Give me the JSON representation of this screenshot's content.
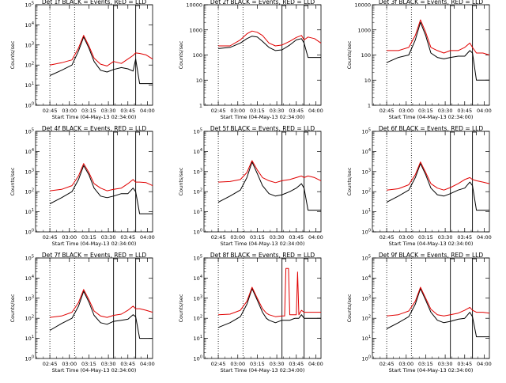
{
  "figure": {
    "xlabel": "Start Time (04-May-13 02:34:00)",
    "ylabel": "Counts/sec",
    "x_tick_labels": [
      "02:45",
      "03:00",
      "03:15",
      "03:30",
      "03:45",
      "04:00"
    ],
    "colors": {
      "events": "#000000",
      "lld": "#e00000"
    }
  },
  "chart_data": [
    {
      "type": "line",
      "title": "Det 1f BLACK = Events, RED = LLD",
      "ylabel": "Counts/sec",
      "xlabel": "Start Time (04-May-13 02:34:00)",
      "x_units": "minutes after 02:34:00",
      "xlim": [
        0,
        90
      ],
      "ylim": [
        1,
        100000
      ],
      "yscale": "log",
      "y_tick_labels": [
        "10^0",
        "10^1",
        "10^2",
        "10^3",
        "10^4",
        "10^5"
      ],
      "dotted_vlines": [
        11,
        30
      ],
      "solid_vlines": [
        60,
        77
      ],
      "x": [
        11,
        20,
        28,
        33,
        37,
        41,
        45,
        50,
        55,
        60,
        66,
        71,
        75,
        77,
        80,
        85,
        90
      ],
      "series": [
        {
          "name": "Events",
          "color": "#000000",
          "values": [
            30,
            55,
            100,
            500,
            2500,
            700,
            150,
            55,
            45,
            60,
            75,
            65,
            50,
            200,
            12,
            12,
            12
          ]
        },
        {
          "name": "LLD",
          "color": "#e00000",
          "values": [
            100,
            130,
            180,
            700,
            3000,
            900,
            220,
            110,
            90,
            150,
            120,
            200,
            300,
            400,
            380,
            320,
            200
          ]
        }
      ]
    },
    {
      "type": "line",
      "title": "Det 2f BLACK = Events, RED = LLD",
      "ylabel": "Counts/sec",
      "xlabel": "Start Time (04-May-13 02:34:00)",
      "x_units": "minutes after 02:34:00",
      "xlim": [
        0,
        90
      ],
      "ylim": [
        1,
        10000
      ],
      "yscale": "log",
      "y_tick_labels": [
        "1",
        "10",
        "100",
        "1000",
        "10000"
      ],
      "dotted_vlines": [
        11,
        30
      ],
      "solid_vlines": [
        60,
        77
      ],
      "x": [
        11,
        20,
        28,
        33,
        37,
        41,
        45,
        50,
        55,
        60,
        66,
        71,
        75,
        77,
        80,
        85,
        90
      ],
      "series": [
        {
          "name": "Events",
          "color": "#000000",
          "values": [
            180,
            200,
            300,
            450,
            560,
            520,
            350,
            200,
            150,
            160,
            250,
            400,
            450,
            300,
            80,
            80,
            80
          ]
        },
        {
          "name": "LLD",
          "color": "#e00000",
          "values": [
            230,
            230,
            400,
            700,
            900,
            800,
            600,
            300,
            230,
            250,
            350,
            500,
            600,
            400,
            520,
            450,
            300
          ]
        }
      ]
    },
    {
      "type": "line",
      "title": "Det 3f BLACK = Events, RED = LLD",
      "ylabel": "Counts/sec",
      "xlabel": "Start Time (04-May-13 02:34:00)",
      "x_units": "minutes after 02:34:00",
      "xlim": [
        0,
        90
      ],
      "ylim": [
        1,
        10000
      ],
      "yscale": "log",
      "y_tick_labels": [
        "1",
        "10",
        "100",
        "1000",
        "10000"
      ],
      "dotted_vlines": [
        11,
        30
      ],
      "solid_vlines": [
        60,
        77
      ],
      "x": [
        11,
        20,
        28,
        33,
        37,
        41,
        45,
        50,
        55,
        60,
        66,
        71,
        75,
        77,
        80,
        85,
        90
      ],
      "series": [
        {
          "name": "Events",
          "color": "#000000",
          "values": [
            50,
            80,
            100,
            400,
            2000,
            600,
            120,
            80,
            70,
            80,
            90,
            90,
            150,
            120,
            10,
            10,
            10
          ]
        },
        {
          "name": "LLD",
          "color": "#e00000",
          "values": [
            150,
            150,
            200,
            600,
            2500,
            800,
            200,
            150,
            120,
            150,
            150,
            200,
            300,
            200,
            120,
            120,
            100
          ]
        }
      ]
    },
    {
      "type": "line",
      "title": "Det 4f BLACK = Events, RED = LLD",
      "ylabel": "Counts/sec",
      "xlabel": "Start Time (04-May-13 02:34:00)",
      "x_units": "minutes after 02:34:00",
      "xlim": [
        0,
        90
      ],
      "ylim": [
        1,
        100000
      ],
      "yscale": "log",
      "y_tick_labels": [
        "10^0",
        "10^1",
        "10^2",
        "10^3",
        "10^4",
        "10^5"
      ],
      "dotted_vlines": [
        11,
        30
      ],
      "solid_vlines": [
        60,
        77
      ],
      "x": [
        11,
        20,
        28,
        33,
        37,
        41,
        45,
        50,
        55,
        60,
        66,
        71,
        75,
        77,
        80,
        85,
        90
      ],
      "series": [
        {
          "name": "Events",
          "color": "#000000",
          "values": [
            25,
            50,
            100,
            400,
            2000,
            700,
            150,
            60,
            50,
            60,
            80,
            80,
            150,
            100,
            8,
            8,
            8
          ]
        },
        {
          "name": "LLD",
          "color": "#e00000",
          "values": [
            110,
            130,
            200,
            600,
            2500,
            900,
            250,
            150,
            110,
            130,
            150,
            250,
            400,
            300,
            300,
            280,
            200
          ]
        }
      ]
    },
    {
      "type": "line",
      "title": "Det 5f BLACK = Events, RED = LLD",
      "ylabel": "Counts/sec",
      "xlabel": "Start Time (04-May-13 02:34:00)",
      "x_units": "minutes after 02:34:00",
      "xlim": [
        0,
        90
      ],
      "ylim": [
        1,
        100000
      ],
      "yscale": "log",
      "y_tick_labels": [
        "10^0",
        "10^1",
        "10^2",
        "10^3",
        "10^4",
        "10^5"
      ],
      "dotted_vlines": [
        11,
        30
      ],
      "solid_vlines": [
        60,
        77
      ],
      "x": [
        11,
        20,
        28,
        33,
        37,
        41,
        45,
        50,
        55,
        60,
        66,
        71,
        75,
        77,
        80,
        85,
        90
      ],
      "series": [
        {
          "name": "Events",
          "color": "#000000",
          "values": [
            30,
            60,
            120,
            500,
            3000,
            800,
            200,
            80,
            60,
            70,
            100,
            150,
            250,
            150,
            12,
            12,
            12
          ]
        },
        {
          "name": "LLD",
          "color": "#e00000",
          "values": [
            300,
            320,
            400,
            900,
            3500,
            1200,
            500,
            350,
            280,
            350,
            400,
            500,
            600,
            500,
            600,
            500,
            350
          ]
        }
      ]
    },
    {
      "type": "line",
      "title": "Det 6f BLACK = Events, RED = LLD",
      "ylabel": "Counts/sec",
      "xlabel": "Start Time (04-May-13 02:34:00)",
      "x_units": "minutes after 02:34:00",
      "xlim": [
        0,
        90
      ],
      "ylim": [
        1,
        100000
      ],
      "yscale": "log",
      "y_tick_labels": [
        "10^0",
        "10^1",
        "10^2",
        "10^3",
        "10^4",
        "10^5"
      ],
      "dotted_vlines": [
        11,
        30
      ],
      "solid_vlines": [
        60,
        77
      ],
      "x": [
        11,
        20,
        28,
        33,
        37,
        41,
        45,
        50,
        55,
        60,
        66,
        71,
        75,
        77,
        80,
        85,
        90
      ],
      "series": [
        {
          "name": "Events",
          "color": "#000000",
          "values": [
            30,
            60,
            120,
            500,
            2500,
            700,
            150,
            70,
            60,
            80,
            120,
            150,
            300,
            200,
            12,
            12,
            12
          ]
        },
        {
          "name": "LLD",
          "color": "#e00000",
          "values": [
            120,
            140,
            220,
            700,
            3000,
            900,
            250,
            150,
            120,
            160,
            250,
            400,
            500,
            400,
            350,
            300,
            250
          ]
        }
      ]
    },
    {
      "type": "line",
      "title": "Det 7f BLACK = Events, RED = LLD",
      "ylabel": "Counts/sec",
      "xlabel": "Start Time (04-May-13 02:34:00)",
      "x_units": "minutes after 02:34:00",
      "xlim": [
        0,
        90
      ],
      "ylim": [
        1,
        100000
      ],
      "yscale": "log",
      "y_tick_labels": [
        "10^0",
        "10^1",
        "10^2",
        "10^3",
        "10^4",
        "10^5"
      ],
      "dotted_vlines": [
        11,
        30
      ],
      "solid_vlines": [
        60,
        77
      ],
      "x": [
        11,
        20,
        28,
        33,
        37,
        41,
        45,
        50,
        55,
        60,
        66,
        71,
        75,
        77,
        80,
        85,
        90
      ],
      "series": [
        {
          "name": "Events",
          "color": "#000000",
          "values": [
            25,
            55,
            100,
            400,
            2200,
            650,
            140,
            60,
            50,
            70,
            80,
            90,
            150,
            120,
            10,
            10,
            10
          ]
        },
        {
          "name": "LLD",
          "color": "#e00000",
          "values": [
            110,
            130,
            200,
            600,
            2700,
            850,
            230,
            130,
            110,
            140,
            160,
            250,
            400,
            300,
            300,
            250,
            200
          ]
        }
      ]
    },
    {
      "type": "line",
      "title": "Det 8f BLACK = Events, RED = LLD",
      "ylabel": "Counts/sec",
      "xlabel": "Start Time (04-May-13 02:34:00)",
      "x_units": "minutes after 02:34:00",
      "xlim": [
        0,
        90
      ],
      "ylim": [
        1,
        100000
      ],
      "yscale": "log",
      "y_tick_labels": [
        "10^0",
        "10^1",
        "10^2",
        "10^3",
        "10^4",
        "10^5"
      ],
      "dotted_vlines": [
        11,
        30
      ],
      "solid_vlines": [
        60,
        77
      ],
      "x": [
        11,
        20,
        28,
        33,
        37,
        41,
        45,
        48,
        50,
        55,
        60,
        62,
        63,
        64,
        65,
        66,
        68,
        70,
        71,
        72,
        73,
        75,
        77,
        80,
        85,
        90
      ],
      "series": [
        {
          "name": "Events",
          "color": "#000000",
          "values": [
            35,
            60,
            120,
            500,
            3000,
            800,
            200,
            100,
            80,
            60,
            80,
            80,
            80,
            80,
            80,
            80,
            90,
            100,
            100,
            100,
            100,
            150,
            100,
            100,
            100,
            100
          ]
        },
        {
          "name": "LLD",
          "color": "#e00000",
          "values": [
            150,
            160,
            250,
            700,
            3500,
            1000,
            300,
            180,
            150,
            120,
            130,
            130,
            30000,
            30000,
            30000,
            150,
            150,
            150,
            150,
            20000,
            150,
            250,
            200,
            200,
            200,
            200
          ]
        }
      ]
    },
    {
      "type": "line",
      "title": "Det 9f BLACK = Events, RED = LLD",
      "ylabel": "Counts/sec",
      "xlabel": "Start Time (04-May-13 02:34:00)",
      "x_units": "minutes after 02:34:00",
      "xlim": [
        0,
        90
      ],
      "ylim": [
        1,
        100000
      ],
      "yscale": "log",
      "y_tick_labels": [
        "10^0",
        "10^1",
        "10^2",
        "10^3",
        "10^4",
        "10^5"
      ],
      "dotted_vlines": [
        11,
        30
      ],
      "solid_vlines": [
        60,
        77
      ],
      "x": [
        11,
        20,
        28,
        33,
        37,
        41,
        45,
        50,
        55,
        60,
        66,
        71,
        75,
        77,
        80,
        85,
        90
      ],
      "series": [
        {
          "name": "Events",
          "color": "#000000",
          "values": [
            30,
            60,
            120,
            500,
            3000,
            800,
            200,
            80,
            60,
            70,
            90,
            100,
            200,
            120,
            12,
            12,
            12
          ]
        },
        {
          "name": "LLD",
          "color": "#e00000",
          "values": [
            130,
            150,
            230,
            700,
            3500,
            1000,
            280,
            150,
            130,
            150,
            180,
            250,
            350,
            250,
            200,
            200,
            180
          ]
        }
      ]
    }
  ]
}
